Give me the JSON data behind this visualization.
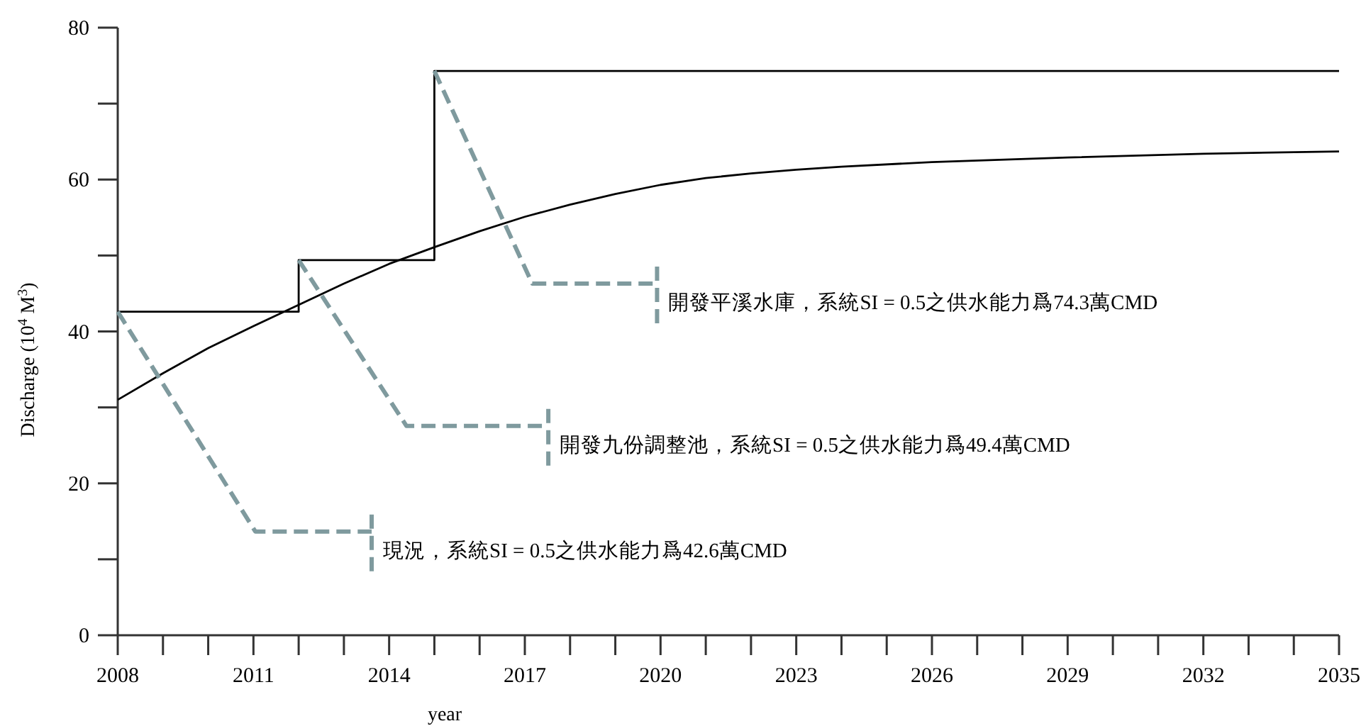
{
  "chart_data": {
    "type": "line",
    "xlabel": "year",
    "ylabel": "Discharge (10$^{4}$ M$^{3}$)",
    "xlim": [
      2008,
      2035
    ],
    "xticks": [
      2008,
      {
        "value": 2009,
        "label": null
      },
      {
        "value": 2010,
        "label": null
      },
      2011,
      {
        "value": 2012,
        "label": null
      },
      {
        "value": 2013,
        "label": null
      },
      2014,
      {
        "value": 2015,
        "label": null
      },
      {
        "value": 2016,
        "label": null
      },
      2017,
      {
        "value": 2018,
        "label": null
      },
      {
        "value": 2019,
        "label": null
      },
      2020,
      {
        "value": 2021,
        "label": null
      },
      {
        "value": 2022,
        "label": null
      },
      2023,
      {
        "value": 2024,
        "label": null
      },
      {
        "value": 2025,
        "label": null
      },
      2026,
      {
        "value": 2027,
        "label": null
      },
      {
        "value": 2028,
        "label": null
      },
      2029,
      {
        "value": 2030,
        "label": null
      },
      {
        "value": 2031,
        "label": null
      },
      2032,
      {
        "value": 2033,
        "label": null
      },
      {
        "value": 2034,
        "label": null
      },
      2035
    ],
    "ylim": [
      0,
      80
    ],
    "yticks": [
      0,
      {
        "value": 10,
        "label": null
      },
      20,
      {
        "value": 30,
        "label": null
      },
      40,
      {
        "value": 50,
        "label": null
      },
      60,
      {
        "value": 70,
        "label": null
      },
      80
    ],
    "series": [
      {
        "type": "step",
        "color": "#000000",
        "x": [
          2008,
          2012,
          2015,
          2035
        ],
        "values": [
          42.6,
          49.4,
          74.3,
          74.3
        ]
      },
      {
        "type": "line",
        "color": "#000000",
        "x": [
          2008,
          2009,
          2010,
          2011,
          2012,
          2013,
          2014,
          2015,
          2016,
          2017,
          2018,
          2019,
          2020,
          2021,
          2022,
          2023,
          2024,
          2026,
          2029,
          2032,
          2035
        ],
        "values": [
          31.0,
          34.5,
          37.8,
          40.7,
          43.5,
          46.3,
          48.9,
          51.1,
          53.2,
          55.1,
          56.7,
          58.1,
          59.3,
          60.2,
          60.8,
          61.3,
          61.7,
          62.3,
          62.9,
          63.4,
          63.7
        ]
      }
    ],
    "annotations": [
      {
        "text": "現況，系統SI = 0.5之供水能力爲42.6萬CMD",
        "x": 2008,
        "y": 42.6
      },
      {
        "text": "開發九份調整池，系統SI = 0.5之供水能力爲49.4萬CMD",
        "x": 2012,
        "y": 49.4
      },
      {
        "text": "開發平溪水庫，系統SI = 0.5之供水能力爲74.3萬CMD",
        "x": 2015,
        "y": 74.3
      }
    ]
  }
}
